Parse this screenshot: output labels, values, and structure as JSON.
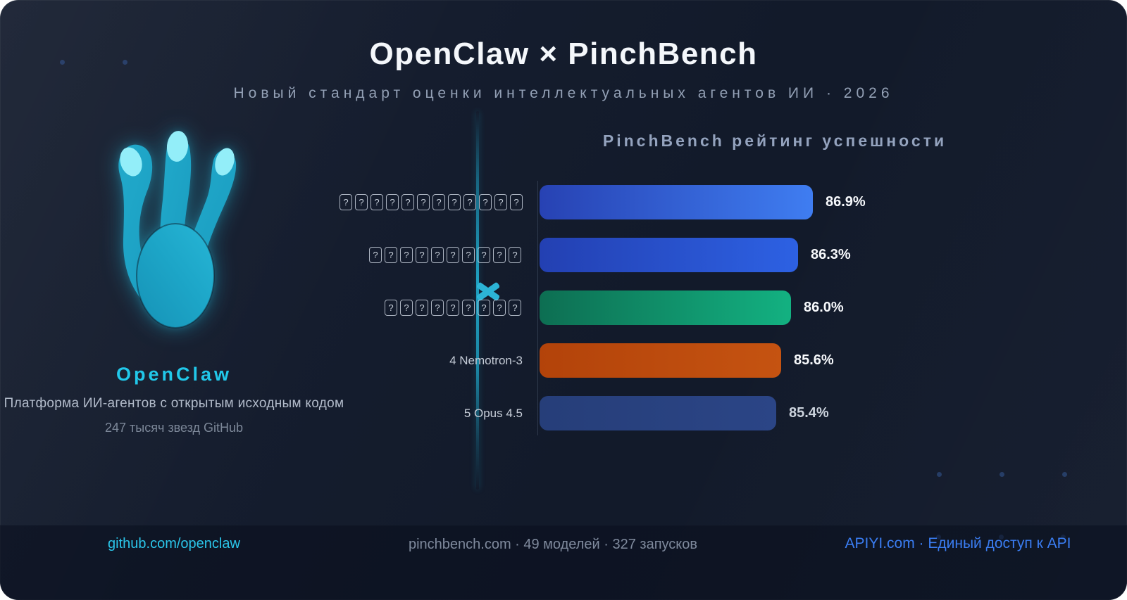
{
  "header": {
    "title": "OpenClaw × PinchBench",
    "subtitle": "Новый стандарт оценки интеллектуальных агентов ИИ · 2026"
  },
  "left_panel": {
    "brand": "OpenClaw",
    "description": "Платформа ИИ-агентов с открытым исходным кодом",
    "github_stars": "247 тысяч звезд GitHub",
    "accent_color": "#22c8e8",
    "logo_icon": "openclaw-claw-logo"
  },
  "divider": {
    "cross_icon": "heavy-multiplication-x",
    "cross_color": "#2cb4d6",
    "line_color": "#1aa0c4"
  },
  "chart_data": {
    "type": "bar",
    "orientation": "horizontal",
    "title": "PinchBench рейтинг успешности",
    "value_suffix": "%",
    "xlim": [
      75.7,
      86.9
    ],
    "grid": false,
    "legend": false,
    "missing_glyph_char": "?",
    "bars": [
      {
        "label": "",
        "label_missing_glyphs": 12,
        "value": 86.9,
        "colors": [
          "#2742b3",
          "#3f7df1"
        ],
        "value_color": "#f7f9fc"
      },
      {
        "label": "",
        "label_missing_glyphs": 10,
        "value": 86.3,
        "colors": [
          "#2340b2",
          "#2d61e3"
        ],
        "value_color": "#f7f9fc"
      },
      {
        "label": "",
        "label_missing_glyphs": 9,
        "value": 86.0,
        "colors": [
          "#0d6e52",
          "#13b181"
        ],
        "value_color": "#f7f9fc"
      },
      {
        "label": "4 Nemotron-3",
        "label_missing_glyphs": 0,
        "value": 85.6,
        "colors": [
          "#b3430a",
          "#c55311"
        ],
        "value_color": "#f7f9fc"
      },
      {
        "label": "5 Opus 4.5",
        "label_missing_glyphs": 0,
        "value": 85.4,
        "colors": [
          "#263e79",
          "#2b4586"
        ],
        "value_color": "#ccd3dd"
      }
    ]
  },
  "footer": {
    "left_link": "github.com/openclaw",
    "center_text": "pinchbench.com · 49 моделей · 327 запусков",
    "right_link": "APIYI.com · Единый доступ к API"
  }
}
